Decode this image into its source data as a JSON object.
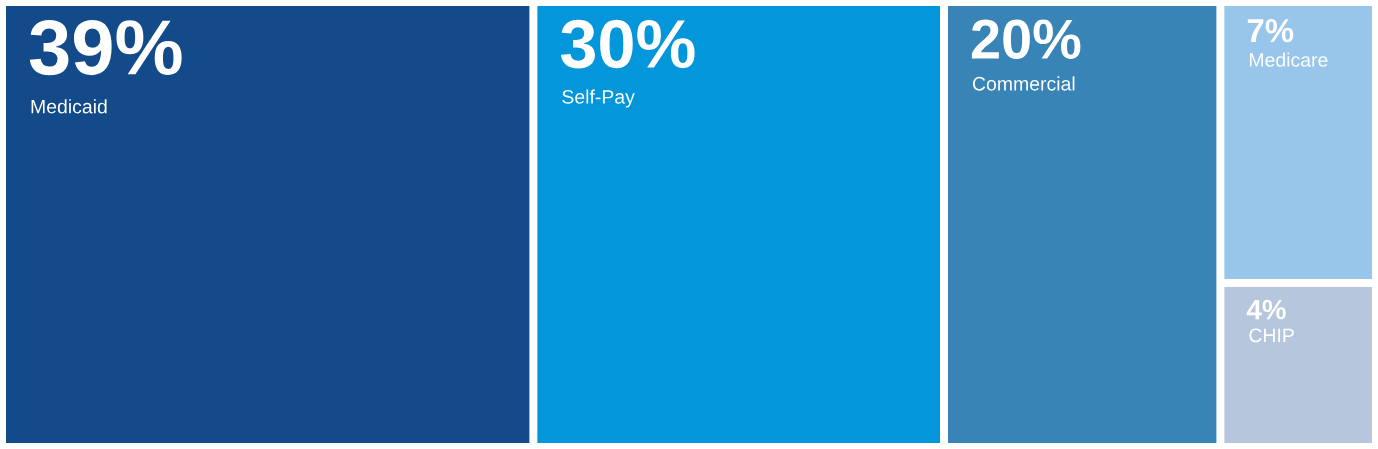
{
  "chart_data": {
    "type": "other",
    "categories": [
      "Medicaid",
      "Self-Pay",
      "Commercial",
      "Medicare",
      "CHIP"
    ],
    "values": [
      39,
      30,
      20,
      7,
      4
    ],
    "value_labels": [
      "39%",
      "30%",
      "20%",
      "7%",
      "4%"
    ],
    "colors": [
      "#134a8a",
      "#0396da",
      "#3884b6",
      "#98c6ea",
      "#b6c7dd"
    ]
  }
}
